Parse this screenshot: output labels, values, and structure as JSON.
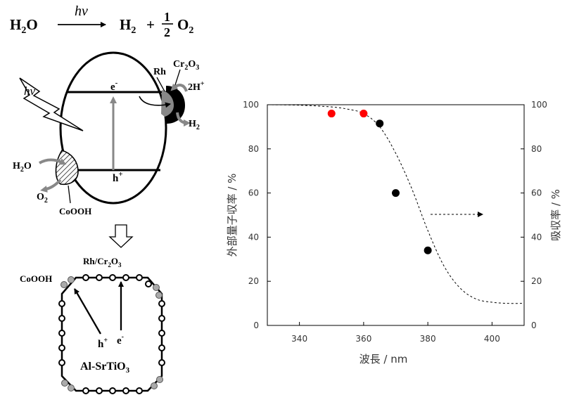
{
  "equation": {
    "reactant": "H",
    "reactant_sub": "2",
    "reactant_tail": "O",
    "hv": "hν",
    "product1": "H",
    "product1_sub": "2",
    "plus": "+",
    "frac_num": "1",
    "frac_den": "2",
    "product2": "O",
    "product2_sub": "2"
  },
  "particle": {
    "hv": "hν",
    "electron": "e",
    "electron_sup": "-",
    "hole": "h",
    "hole_sup": "+",
    "rh": "Rh",
    "cr2o3": "Cr",
    "cr2o3_sub": "2",
    "cr2o3_tail": "O",
    "cr2o3_sub2": "3",
    "proton": "2H",
    "proton_sup": "+",
    "h2": "H",
    "h2_sub": "2",
    "h2o": "H",
    "h2o_sub": "2",
    "h2o_tail": "O",
    "o2": "O",
    "o2_sub": "2",
    "coooh": "CoOOH"
  },
  "crystal": {
    "top_label": "Rh/Cr",
    "top_label_sub": "2",
    "top_label_tail": "O",
    "top_label_sub2": "3",
    "left_label": "CoOOH",
    "hole": "h",
    "hole_sup": "+",
    "electron": "e",
    "electron_sup": "-",
    "name": "Al-SrTiO",
    "name_sub": "3"
  },
  "chart_data": {
    "type": "scatter",
    "xlabel": "波長 / nm",
    "ylabel_left": "外部量子収率 / %",
    "ylabel_right": "吸収率 / %",
    "xlim": [
      330,
      410
    ],
    "ylim": [
      0,
      100
    ],
    "x_ticks": [
      340,
      360,
      380,
      400
    ],
    "y_ticks": [
      0,
      20,
      40,
      60,
      80,
      100
    ],
    "grid": false,
    "series": [
      {
        "marker": "red-dot",
        "color": "#ff0000",
        "points": [
          [
            350,
            96
          ],
          [
            360,
            96
          ]
        ]
      },
      {
        "marker": "black-dot",
        "color": "#000000",
        "points": [
          [
            365,
            91.5
          ],
          [
            370,
            60
          ],
          [
            380,
            34
          ]
        ]
      },
      {
        "style": "dashed-line",
        "color": "#000000",
        "x": [
          330,
          340,
          350,
          355,
          360,
          365,
          370,
          375,
          380,
          385,
          390,
          395,
          400,
          405,
          410
        ],
        "y": [
          100,
          99.8,
          99,
          98,
          96,
          90,
          78,
          62,
          43,
          27,
          17,
          12,
          10.5,
          10,
          10
        ]
      }
    ]
  }
}
